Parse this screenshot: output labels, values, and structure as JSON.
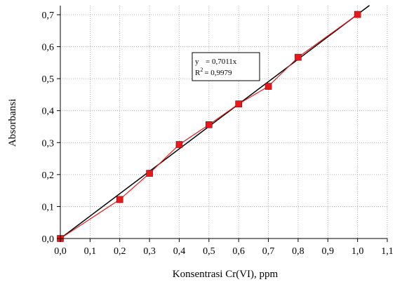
{
  "chart_data": {
    "type": "scatter",
    "xlabel": "Konsentrasi Cr(VI), ppm",
    "ylabel": "Absorbansi",
    "xlim": [
      0.0,
      1.1
    ],
    "ylim": [
      0.0,
      0.73
    ],
    "x_ticks": [
      0.0,
      0.1,
      0.2,
      0.3,
      0.4,
      0.5,
      0.6,
      0.7,
      0.8,
      0.9,
      1.0,
      1.1
    ],
    "x_tick_labels": [
      "0,0",
      "0,1",
      "0,2",
      "0,3",
      "0,4",
      "0,5",
      "0,6",
      "0,7",
      "0,8",
      "0,9",
      "1,0",
      "1,1"
    ],
    "y_ticks": [
      0.0,
      0.1,
      0.2,
      0.3,
      0.4,
      0.5,
      0.6,
      0.7
    ],
    "y_tick_labels": [
      "0,0",
      "0,1",
      "0,2",
      "0,3",
      "0,4",
      "0,5",
      "0,6",
      "0,7"
    ],
    "grid": true,
    "series": [
      {
        "x": [
          0.0,
          0.2,
          0.3,
          0.4,
          0.5,
          0.6,
          0.7,
          0.8,
          1.0
        ],
        "y": [
          0.0,
          0.122,
          0.204,
          0.294,
          0.356,
          0.421,
          0.476,
          0.567,
          0.701
        ],
        "color": "#e8191b",
        "marker": "square"
      }
    ],
    "fit_line": {
      "slope": 0.7011,
      "x_range": [
        0.0,
        1.04
      ],
      "color": "#000000"
    },
    "annotation": {
      "eq_prefix": "y",
      "eq_value": "= 0,7011x",
      "r2_label": "R",
      "r2_sup": "2",
      "r2_value": "= 0,9979"
    }
  }
}
